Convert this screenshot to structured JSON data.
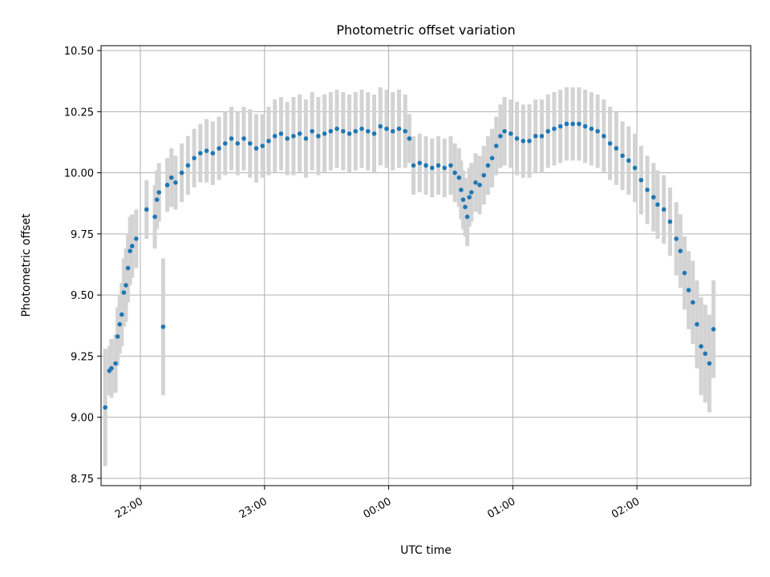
{
  "chart_data": {
    "type": "scatter",
    "title": "Photometric offset variation",
    "xlabel": "UTC time",
    "ylabel": "Photometric offset",
    "x_ticks": [
      "22:00",
      "23:00",
      "00:00",
      "01:00",
      "02:00"
    ],
    "x_tick_hours": [
      0,
      1,
      2,
      3,
      4
    ],
    "y_ticks": [
      "8.75",
      "9.00",
      "9.25",
      "9.50",
      "9.75",
      "10.00",
      "10.25",
      "10.50"
    ],
    "xlim": [
      "21:41",
      "02:55"
    ],
    "ylim": [
      8.72,
      10.52
    ],
    "grid": true,
    "marker_color": "#1f77b4",
    "errorbar_color": "#d3d3d3",
    "x_units": "UTC time (HH:MM)",
    "series": [
      {
        "points": [
          [
            "21:43",
            9.04,
            0.24
          ],
          [
            "21:45",
            9.19,
            0.1
          ],
          [
            "21:46",
            9.2,
            0.12
          ],
          [
            "21:48",
            9.22,
            0.12
          ],
          [
            "21:49",
            9.33,
            0.12
          ],
          [
            "21:50",
            9.38,
            0.12
          ],
          [
            "21:51",
            9.42,
            0.13
          ],
          [
            "21:52",
            9.51,
            0.14
          ],
          [
            "21:53",
            9.54,
            0.15
          ],
          [
            "21:54",
            9.61,
            0.14
          ],
          [
            "21:55",
            9.68,
            0.14
          ],
          [
            "21:56",
            9.7,
            0.13
          ],
          [
            "21:58",
            9.73,
            0.12
          ],
          [
            "22:03",
            9.85,
            0.12
          ],
          [
            "22:07",
            9.82,
            0.13
          ],
          [
            "22:08",
            9.89,
            0.12
          ],
          [
            "22:09",
            9.92,
            0.12
          ],
          [
            "22:11",
            9.37,
            0.28
          ],
          [
            "22:13",
            9.95,
            0.11
          ],
          [
            "22:15",
            9.98,
            0.12
          ],
          [
            "22:17",
            9.96,
            0.11
          ],
          [
            "22:20",
            10.0,
            0.12
          ],
          [
            "22:23",
            10.03,
            0.12
          ],
          [
            "22:26",
            10.06,
            0.12
          ],
          [
            "22:29",
            10.08,
            0.12
          ],
          [
            "22:32",
            10.09,
            0.13
          ],
          [
            "22:35",
            10.08,
            0.13
          ],
          [
            "22:38",
            10.1,
            0.13
          ],
          [
            "22:41",
            10.12,
            0.13
          ],
          [
            "22:44",
            10.14,
            0.13
          ],
          [
            "22:47",
            10.12,
            0.13
          ],
          [
            "22:50",
            10.14,
            0.13
          ],
          [
            "22:53",
            10.12,
            0.14
          ],
          [
            "22:56",
            10.1,
            0.14
          ],
          [
            "22:59",
            10.11,
            0.13
          ],
          [
            "23:02",
            10.13,
            0.14
          ],
          [
            "23:05",
            10.15,
            0.15
          ],
          [
            "23:08",
            10.16,
            0.15
          ],
          [
            "23:11",
            10.14,
            0.15
          ],
          [
            "23:14",
            10.15,
            0.16
          ],
          [
            "23:17",
            10.16,
            0.16
          ],
          [
            "23:20",
            10.14,
            0.16
          ],
          [
            "23:23",
            10.17,
            0.16
          ],
          [
            "23:26",
            10.15,
            0.16
          ],
          [
            "23:29",
            10.16,
            0.16
          ],
          [
            "23:32",
            10.17,
            0.16
          ],
          [
            "23:35",
            10.18,
            0.16
          ],
          [
            "23:38",
            10.17,
            0.16
          ],
          [
            "23:41",
            10.16,
            0.16
          ],
          [
            "23:44",
            10.17,
            0.16
          ],
          [
            "23:47",
            10.18,
            0.16
          ],
          [
            "23:50",
            10.17,
            0.16
          ],
          [
            "23:53",
            10.16,
            0.16
          ],
          [
            "23:56",
            10.19,
            0.16
          ],
          [
            "23:59",
            10.18,
            0.16
          ],
          [
            "00:02",
            10.17,
            0.16
          ],
          [
            "00:05",
            10.18,
            0.16
          ],
          [
            "00:08",
            10.17,
            0.15
          ],
          [
            "00:10",
            10.14,
            0.1
          ],
          [
            "00:12",
            10.03,
            0.12
          ],
          [
            "00:15",
            10.04,
            0.12
          ],
          [
            "00:18",
            10.03,
            0.12
          ],
          [
            "00:21",
            10.02,
            0.12
          ],
          [
            "00:24",
            10.03,
            0.12
          ],
          [
            "00:27",
            10.02,
            0.12
          ],
          [
            "00:30",
            10.03,
            0.12
          ],
          [
            "00:32",
            10.0,
            0.12
          ],
          [
            "00:34",
            9.98,
            0.12
          ],
          [
            "00:35",
            9.93,
            0.12
          ],
          [
            "00:36",
            9.89,
            0.12
          ],
          [
            "00:37",
            9.86,
            0.12
          ],
          [
            "00:38",
            9.82,
            0.12
          ],
          [
            "00:39",
            9.9,
            0.12
          ],
          [
            "00:40",
            9.92,
            0.12
          ],
          [
            "00:42",
            9.96,
            0.12
          ],
          [
            "00:44",
            9.95,
            0.12
          ],
          [
            "00:46",
            9.99,
            0.12
          ],
          [
            "00:48",
            10.03,
            0.12
          ],
          [
            "00:50",
            10.06,
            0.12
          ],
          [
            "00:52",
            10.11,
            0.12
          ],
          [
            "00:54",
            10.15,
            0.13
          ],
          [
            "00:56",
            10.17,
            0.14
          ],
          [
            "00:59",
            10.16,
            0.14
          ],
          [
            "01:02",
            10.14,
            0.15
          ],
          [
            "01:05",
            10.13,
            0.15
          ],
          [
            "01:08",
            10.13,
            0.15
          ],
          [
            "01:11",
            10.15,
            0.15
          ],
          [
            "01:14",
            10.15,
            0.15
          ],
          [
            "01:17",
            10.17,
            0.15
          ],
          [
            "01:20",
            10.18,
            0.15
          ],
          [
            "01:23",
            10.19,
            0.15
          ],
          [
            "01:26",
            10.2,
            0.15
          ],
          [
            "01:29",
            10.2,
            0.15
          ],
          [
            "01:32",
            10.2,
            0.15
          ],
          [
            "01:35",
            10.19,
            0.15
          ],
          [
            "01:38",
            10.18,
            0.15
          ],
          [
            "01:41",
            10.17,
            0.15
          ],
          [
            "01:44",
            10.15,
            0.15
          ],
          [
            "01:47",
            10.12,
            0.15
          ],
          [
            "01:50",
            10.1,
            0.15
          ],
          [
            "01:53",
            10.07,
            0.14
          ],
          [
            "01:56",
            10.05,
            0.14
          ],
          [
            "01:59",
            10.02,
            0.14
          ],
          [
            "02:02",
            9.97,
            0.14
          ],
          [
            "02:05",
            9.93,
            0.14
          ],
          [
            "02:08",
            9.9,
            0.14
          ],
          [
            "02:10",
            9.87,
            0.14
          ],
          [
            "02:13",
            9.85,
            0.14
          ],
          [
            "02:16",
            9.8,
            0.14
          ],
          [
            "02:19",
            9.73,
            0.15
          ],
          [
            "02:21",
            9.68,
            0.15
          ],
          [
            "02:23",
            9.59,
            0.15
          ],
          [
            "02:25",
            9.52,
            0.16
          ],
          [
            "02:27",
            9.47,
            0.17
          ],
          [
            "02:29",
            9.38,
            0.18
          ],
          [
            "02:31",
            9.29,
            0.2
          ],
          [
            "02:33",
            9.26,
            0.2
          ],
          [
            "02:35",
            9.22,
            0.2
          ],
          [
            "02:37",
            9.36,
            0.2
          ]
        ]
      }
    ]
  }
}
